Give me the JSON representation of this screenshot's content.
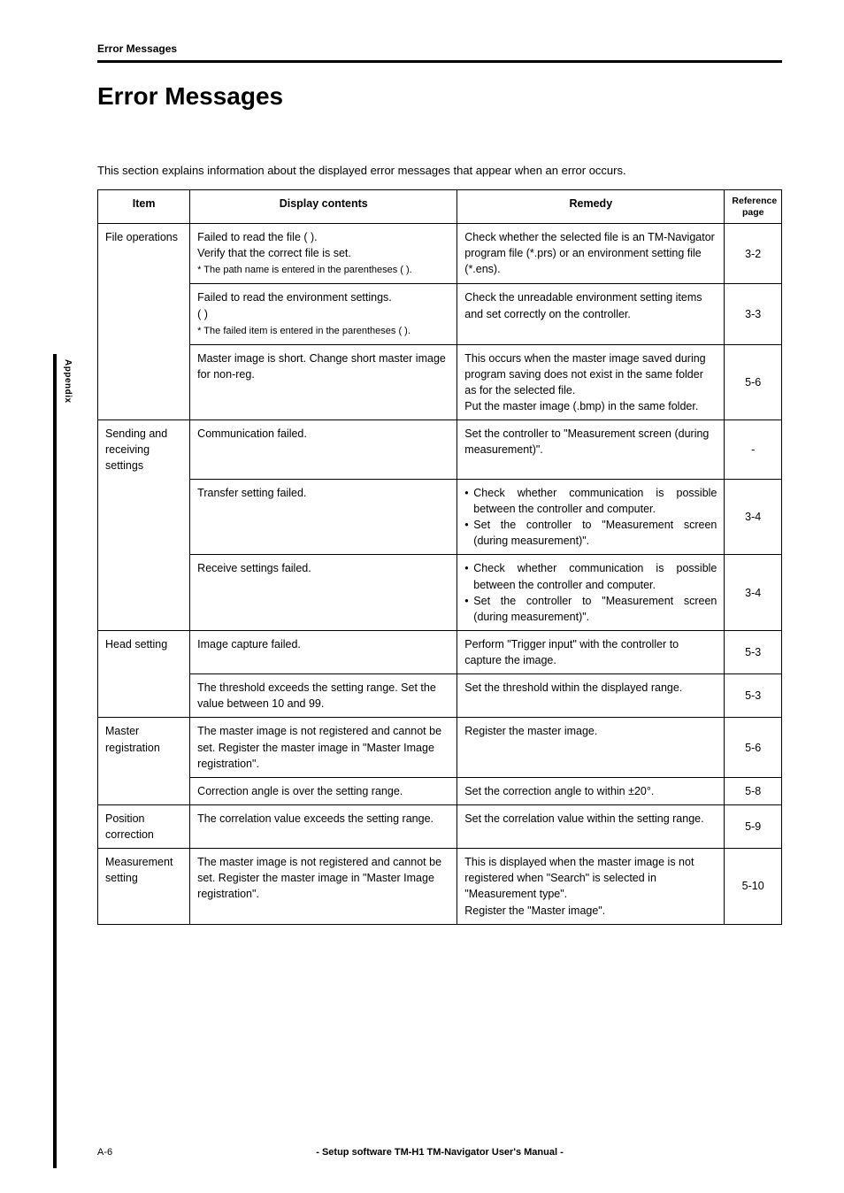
{
  "header": {
    "running": "Error Messages"
  },
  "title": "Error Messages",
  "intro": "This section explains information about the displayed error messages that appear when an error occurs.",
  "table": {
    "headers": {
      "item": "Item",
      "display": "Display contents",
      "remedy": "Remedy",
      "ref": "Reference page"
    },
    "groups": [
      {
        "item": "File operations",
        "rows": [
          {
            "display": "Failed to read the file ( ).\nVerify that the correct file is set.\n* The path name is entered in the parentheses ( ).",
            "remedy": "Check whether the selected file is an TM-Navigator program file (*.prs) or an environment setting file (*.ens).",
            "ref": "3-2"
          },
          {
            "display": "Failed to read the environment settings.\n( )\n* The failed item is entered in the parentheses ( ).",
            "remedy": "Check the unreadable environment setting items and set correctly on the controller.",
            "ref": "3-3"
          },
          {
            "display": "Master image is short. Change short master image for non-reg.",
            "remedy": "This occurs when the master image saved during program saving does not exist in the same folder as for the selected file.\nPut the master image (.bmp) in the same folder.",
            "ref": "5-6"
          }
        ]
      },
      {
        "item": "Sending and receiving settings",
        "rows": [
          {
            "display": "Communication failed.",
            "remedy": "Set the controller to \"Measurement screen (during measurement)\".",
            "ref": "-"
          },
          {
            "display": "Transfer setting failed.",
            "remedy_bullets": [
              "Check whether communication is possible between the controller and computer.",
              "Set the controller to \"Measurement screen (during measurement)\"."
            ],
            "ref": "3-4"
          },
          {
            "display": "Receive settings failed.",
            "remedy_bullets": [
              "Check whether communication is possible between the controller and computer.",
              "Set the controller to \"Measurement screen (during measurement)\"."
            ],
            "ref": "3-4"
          }
        ]
      },
      {
        "item": "Head setting",
        "rows": [
          {
            "display": "Image capture failed.",
            "remedy": "Perform \"Trigger input\" with the controller to capture the image.",
            "ref": "5-3"
          },
          {
            "display": "The threshold exceeds the setting range. Set the value between 10 and 99.",
            "remedy": "Set the threshold within the displayed range.",
            "ref": "5-3"
          }
        ]
      },
      {
        "item": "Master registration",
        "rows": [
          {
            "display": "The master image is not registered and cannot be set. Register the master image in \"Master Image registration\".",
            "remedy": "Register the master image.",
            "ref": "5-6"
          },
          {
            "display": "Correction angle is over the setting range.",
            "remedy": "Set the correction angle to within ±20°.",
            "ref": "5-8"
          }
        ]
      },
      {
        "item": "Position correction",
        "rows": [
          {
            "display": "The correlation value exceeds the setting range.",
            "remedy": "Set the correlation value within the setting range.",
            "ref": "5-9"
          }
        ]
      },
      {
        "item": "Measurement setting",
        "rows": [
          {
            "display": "The master image is not registered and cannot be set. Register the master image in \"Master Image registration\".",
            "remedy": "This is displayed when the master image is not registered when \"Search\" is selected in \"Measurement type\".\nRegister the \"Master image\".",
            "ref": "5-10"
          }
        ]
      }
    ]
  },
  "sidetab": "Appendix",
  "footer": {
    "pagenum": "A-6",
    "text": "- Setup software TM-H1 TM-Navigator User's Manual -"
  }
}
